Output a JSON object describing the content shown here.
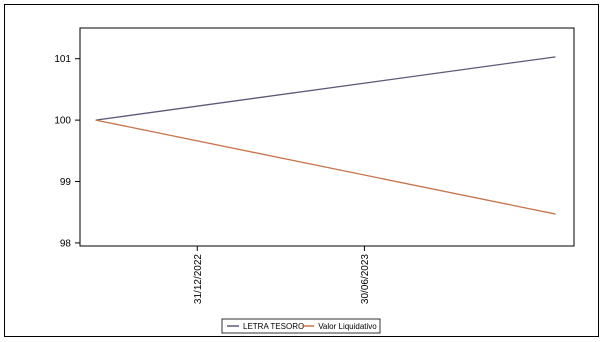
{
  "chart_data": {
    "type": "line",
    "x": [
      "2022-09-12",
      "2024-01-23"
    ],
    "x_ticks": [
      "31/12/2022",
      "30/06/2023"
    ],
    "x_tick_dates": [
      "2022-12-31",
      "2023-06-30"
    ],
    "x_range": [
      "2022-08-26",
      "2024-02-12"
    ],
    "y_ticks": [
      98,
      99,
      100,
      101
    ],
    "ylim": [
      97.95,
      101.5
    ],
    "grid": false,
    "legend_position": "bottom-center",
    "series": [
      {
        "name": "LETRA TESORO",
        "color": "#5a5a78",
        "values": [
          100,
          101.03
        ]
      },
      {
        "name": "Valor Liquidativo",
        "color": "#c8744a",
        "values": [
          100,
          98.47
        ]
      }
    ]
  }
}
